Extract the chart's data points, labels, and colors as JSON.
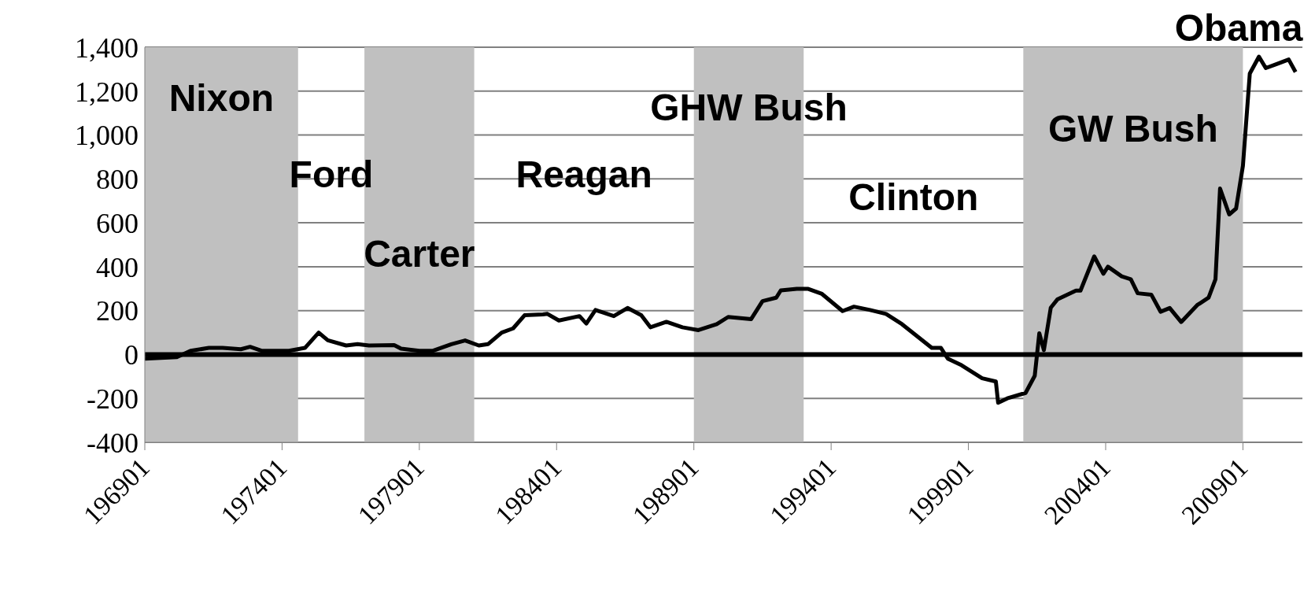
{
  "chart_data": {
    "type": "line",
    "color": "#000000",
    "marker": "none",
    "line_style": "solid",
    "grid": "y",
    "x": [
      "1969-01",
      "1970-03",
      "1970-09",
      "1971-05",
      "1971-11",
      "1972-07",
      "1972-11",
      "1973-04",
      "1974-04",
      "1974-11",
      "1975-05",
      "1975-09",
      "1976-05",
      "1976-10",
      "1977-03",
      "1978-02",
      "1978-05",
      "1979-01",
      "1979-07",
      "1980-03",
      "1980-09",
      "1981-03",
      "1981-07",
      "1982-01",
      "1982-06",
      "1982-11",
      "1983-07",
      "1983-09",
      "1984-02",
      "1984-11",
      "1985-02",
      "1985-06",
      "1986-02",
      "1986-08",
      "1987-02",
      "1987-06",
      "1988-01",
      "1988-08",
      "1989-03",
      "1989-11",
      "1990-04",
      "1991-02",
      "1991-07",
      "1992-01",
      "1992-03",
      "1992-10",
      "1993-03",
      "1993-09",
      "1994-06",
      "1994-11",
      "1995-06",
      "1996-01",
      "1996-08",
      "1997-09",
      "1998-01",
      "1998-04",
      "1998-10",
      "1999-07",
      "2000-01",
      "2000-02",
      "2000-06",
      "2001-02",
      "2001-06",
      "2001-08",
      "2001-10",
      "2002-01",
      "2002-04",
      "2002-12",
      "2003-02",
      "2003-08",
      "2003-12",
      "2004-02",
      "2004-08",
      "2004-12",
      "2005-03",
      "2005-09",
      "2006-01",
      "2006-05",
      "2006-10",
      "2007-05",
      "2007-10",
      "2008-01",
      "2008-03",
      "2008-07",
      "2008-10",
      "2009-01",
      "2009-04",
      "2009-08",
      "2009-11",
      "2010-04",
      "2010-09",
      "2010-12"
    ],
    "values": [
      -19,
      -12,
      17,
      30,
      30,
      24,
      35,
      17,
      17,
      30,
      100,
      65,
      41,
      47,
      41,
      43,
      27,
      17,
      17,
      47,
      64,
      41,
      47,
      100,
      119,
      179,
      183,
      185,
      155,
      175,
      141,
      203,
      175,
      212,
      179,
      124,
      149,
      124,
      111,
      138,
      171,
      161,
      243,
      259,
      292,
      299,
      299,
      276,
      198,
      218,
      203,
      185,
      138,
      30,
      30,
      -19,
      -49,
      -108,
      -123,
      -220,
      -200,
      -175,
      -97,
      97,
      20,
      213,
      252,
      291,
      291,
      447,
      368,
      400,
      356,
      343,
      279,
      272,
      195,
      212,
      148,
      225,
      259,
      343,
      756,
      638,
      665,
      860,
      1280,
      1357,
      1305,
      1324,
      1344,
      1287
    ],
    "xlim": [
      "1969-01",
      "2011-03"
    ],
    "xticks": [
      {
        "value": "1969-01",
        "label": "196901"
      },
      {
        "value": "1974-01",
        "label": "197401"
      },
      {
        "value": "1979-01",
        "label": "197901"
      },
      {
        "value": "1984-01",
        "label": "198401"
      },
      {
        "value": "1989-01",
        "label": "198901"
      },
      {
        "value": "1994-01",
        "label": "199401"
      },
      {
        "value": "1999-01",
        "label": "199901"
      },
      {
        "value": "2004-01",
        "label": "200401"
      },
      {
        "value": "2009-01",
        "label": "200901"
      }
    ],
    "ylim": [
      -400,
      1400
    ],
    "yticks": [
      -400,
      -200,
      0,
      200,
      400,
      600,
      800,
      {
        "value": 1000,
        "label": "1,000"
      },
      {
        "value": 1200,
        "label": "1,200"
      },
      {
        "value": 1400,
        "label": "1,400"
      }
    ],
    "bands": [
      {
        "axis": "x",
        "from": "1969-01",
        "to": "1974-08",
        "color": "#c0c0c0",
        "label": "Nixon"
      },
      {
        "axis": "x",
        "from": "1977-01",
        "to": "1981-01",
        "color": "#c0c0c0",
        "label": "Carter"
      },
      {
        "axis": "x",
        "from": "1989-01",
        "to": "1993-01",
        "color": "#c0c0c0",
        "label": "GHW Bush"
      },
      {
        "axis": "x",
        "from": "2001-01",
        "to": "2009-01",
        "color": "#c0c0c0",
        "label": "GW Bush"
      }
    ],
    "annotations": [
      "Ford",
      "Reagan",
      "Clinton",
      "Obama"
    ],
    "ref_lines": [
      {
        "axis": "y",
        "value": 0,
        "color": "#000000"
      }
    ]
  }
}
